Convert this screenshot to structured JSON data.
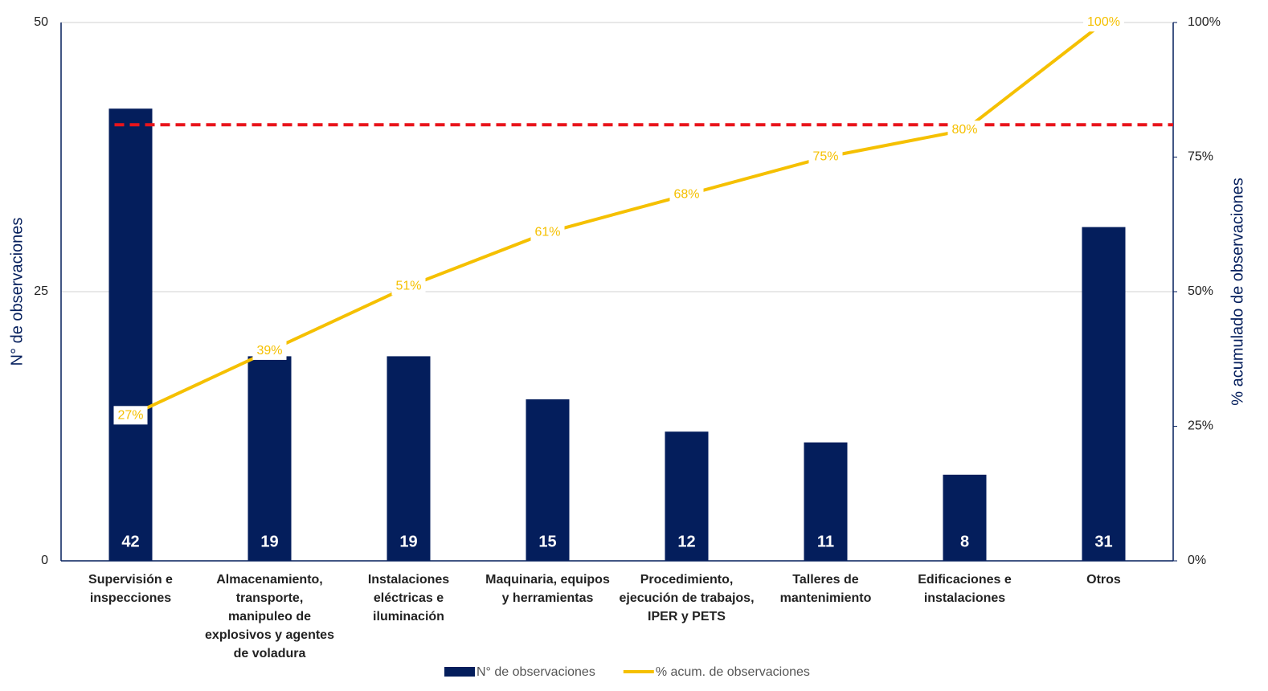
{
  "chart_data": {
    "type": "pareto",
    "categories": [
      "Supervisión e\ninspecciones",
      "Almacenamiento,\ntransporte,\nmanipuleo de\nexplosivos y agentes\nde voladura",
      "Instalaciones\neléctricas e\niluminación",
      "Maquinaria, equipos\ny herramientas",
      "Procedimiento,\nejecución de trabajos,\nIPER y PETS",
      "Talleres de\nmantenimiento",
      "Edificaciones e\ninstalaciones",
      "Otros"
    ],
    "series": [
      {
        "name": "N° de observaciones",
        "type": "bar",
        "color": "#041e5c",
        "values": [
          42,
          19,
          19,
          15,
          12,
          11,
          8,
          31
        ]
      },
      {
        "name": "% acum. de observaciones",
        "type": "line",
        "axis": "y2",
        "color": "#f5c000",
        "values": [
          27,
          39,
          51,
          61,
          68,
          75,
          80,
          100
        ],
        "value_labels": [
          "27%",
          "39%",
          "51%",
          "61%",
          "68%",
          "75%",
          "80%",
          "100%"
        ]
      }
    ],
    "threshold": {
      "value": 81,
      "axis": "y2",
      "color": "#e8141b"
    },
    "ylabel": "N° de observaciones",
    "y2label": "% acumulado de observaciones",
    "ylim": [
      0,
      50
    ],
    "yticks": [
      0,
      25,
      50
    ],
    "y2lim": [
      0,
      100
    ],
    "y2ticks": [
      {
        "value": 0,
        "label": "0%"
      },
      {
        "value": 25,
        "label": "25%"
      },
      {
        "value": 50,
        "label": "50%"
      },
      {
        "value": 75,
        "label": "75%"
      },
      {
        "value": 100,
        "label": "100%"
      }
    ],
    "grid": true,
    "legend": "bottom"
  }
}
